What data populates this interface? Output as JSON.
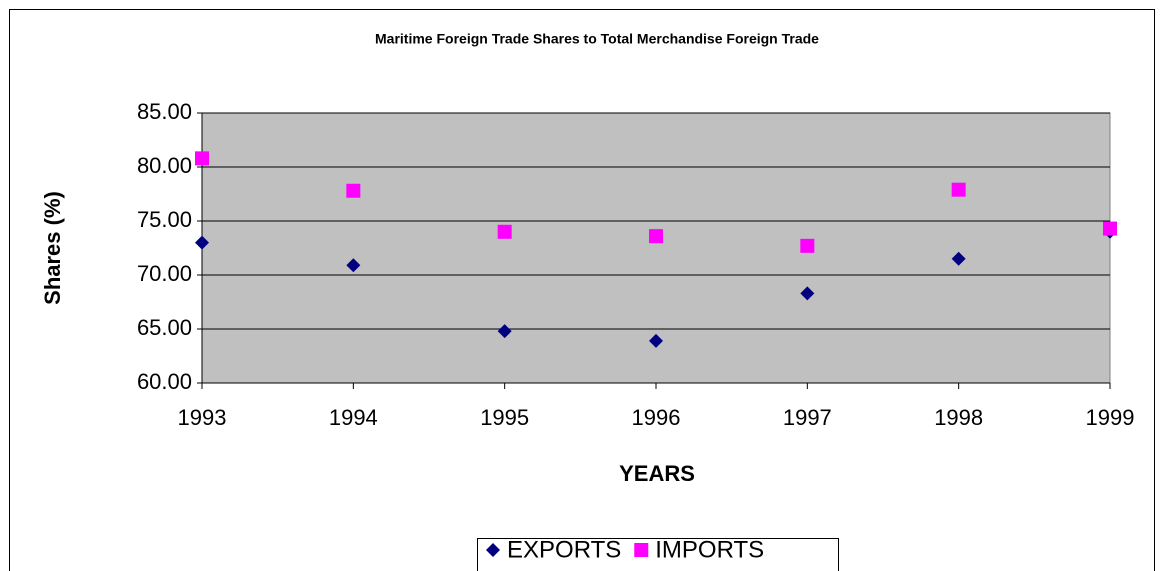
{
  "chart_data": {
    "type": "scatter",
    "title": "Maritime Foreign Trade Shares to Total Merchandise Foreign Trade",
    "xlabel": "YEARS",
    "ylabel": "Shares (%)",
    "x": [
      1993,
      1994,
      1995,
      1996,
      1997,
      1998,
      1999
    ],
    "series": [
      {
        "name": "EXPORTS",
        "color": "#000080",
        "marker": "diamond",
        "values": [
          73.0,
          70.9,
          64.8,
          63.9,
          68.3,
          71.5,
          74.0
        ]
      },
      {
        "name": "IMPORTS",
        "color": "#ff00ff",
        "marker": "square",
        "values": [
          80.8,
          77.8,
          74.0,
          73.6,
          72.7,
          77.9,
          74.3
        ]
      }
    ],
    "xlim": [
      1993,
      1999
    ],
    "xticks": [
      1993,
      1994,
      1995,
      1996,
      1997,
      1998,
      1999
    ],
    "ylim": [
      60,
      85
    ],
    "yticks": [
      {
        "value": 60,
        "label": "60.00"
      },
      {
        "value": 65,
        "label": "65.00"
      },
      {
        "value": 70,
        "label": "70.00"
      },
      {
        "value": 75,
        "label": "75.00"
      },
      {
        "value": 80,
        "label": "80.00"
      },
      {
        "value": 85,
        "label": "85.00"
      }
    ],
    "grid": true,
    "legend": "bottom",
    "plot_background": "#c0c0c0"
  }
}
